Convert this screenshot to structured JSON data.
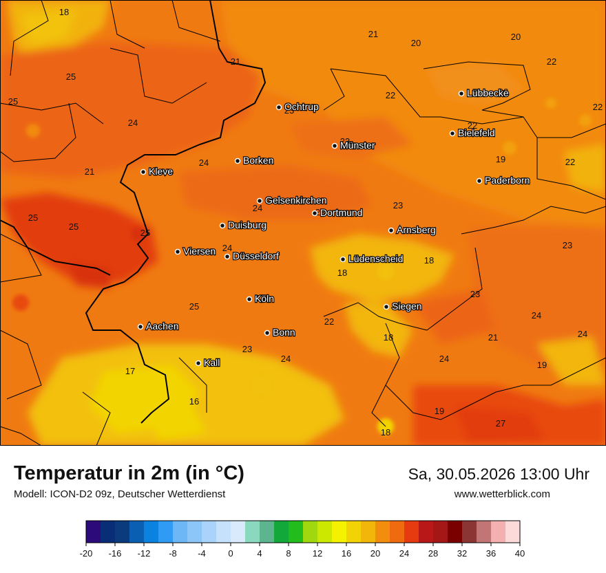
{
  "title": "Temperatur in 2m (in °C)",
  "model": "Modell: ICON-D2 09z, Deutscher Wetterdienst",
  "datetime": "Sa, 30.05.2026 13:00 Uhr",
  "website": "www.wetterblick.com",
  "cities": [
    {
      "name": "Ochtrup"
    },
    {
      "name": "Lübbecke"
    },
    {
      "name": "Münster"
    },
    {
      "name": "Bielefeld"
    },
    {
      "name": "Borken"
    },
    {
      "name": "Kleve"
    },
    {
      "name": "Paderborn"
    },
    {
      "name": "Gelsenkirchen"
    },
    {
      "name": "Dortmund"
    },
    {
      "name": "Duisburg"
    },
    {
      "name": "Arnsberg"
    },
    {
      "name": "Viersen"
    },
    {
      "name": "Düsseldorf"
    },
    {
      "name": "Lüdenscheid"
    },
    {
      "name": "Köln"
    },
    {
      "name": "Siegen"
    },
    {
      "name": "Aachen"
    },
    {
      "name": "Bonn"
    },
    {
      "name": "Kall"
    }
  ],
  "temperature_values": [
    "18",
    "21",
    "20",
    "20",
    "21",
    "22",
    "25",
    "25",
    "22",
    "22",
    "24",
    "22",
    "22",
    "19",
    "21",
    "24",
    "22",
    "23",
    "23",
    "25",
    "25",
    "25",
    "23",
    "24",
    "24",
    "18",
    "18",
    "23",
    "25",
    "22",
    "24",
    "21",
    "24",
    "18",
    "23",
    "24",
    "17",
    "24",
    "19",
    "16",
    "19",
    "18",
    "27",
    "23",
    "24",
    "23",
    "24"
  ],
  "legend": {
    "colors": [
      "#2d0a7a",
      "#0a2d78",
      "#0b3b7c",
      "#0a5fb2",
      "#0a82e0",
      "#2f9bf5",
      "#6db7f7",
      "#8cc6f9",
      "#a9d3fa",
      "#c6e1fb",
      "#d8eafc",
      "#8ad9be",
      "#5cb58f",
      "#13a83a",
      "#22bc1c",
      "#9fd80e",
      "#cde800",
      "#f4f200",
      "#f2d406",
      "#f2b60a",
      "#f28d0e",
      "#f06b10",
      "#e63a10",
      "#b81818",
      "#a51616",
      "#7a0000",
      "#8b3535",
      "#c27575",
      "#f4b0b0",
      "#fcdada"
    ],
    "ticks": [
      "-20",
      "-16",
      "-12",
      "-8",
      "-4",
      "0",
      "4",
      "8",
      "12",
      "16",
      "20",
      "24",
      "28",
      "32",
      "36",
      "40"
    ]
  }
}
